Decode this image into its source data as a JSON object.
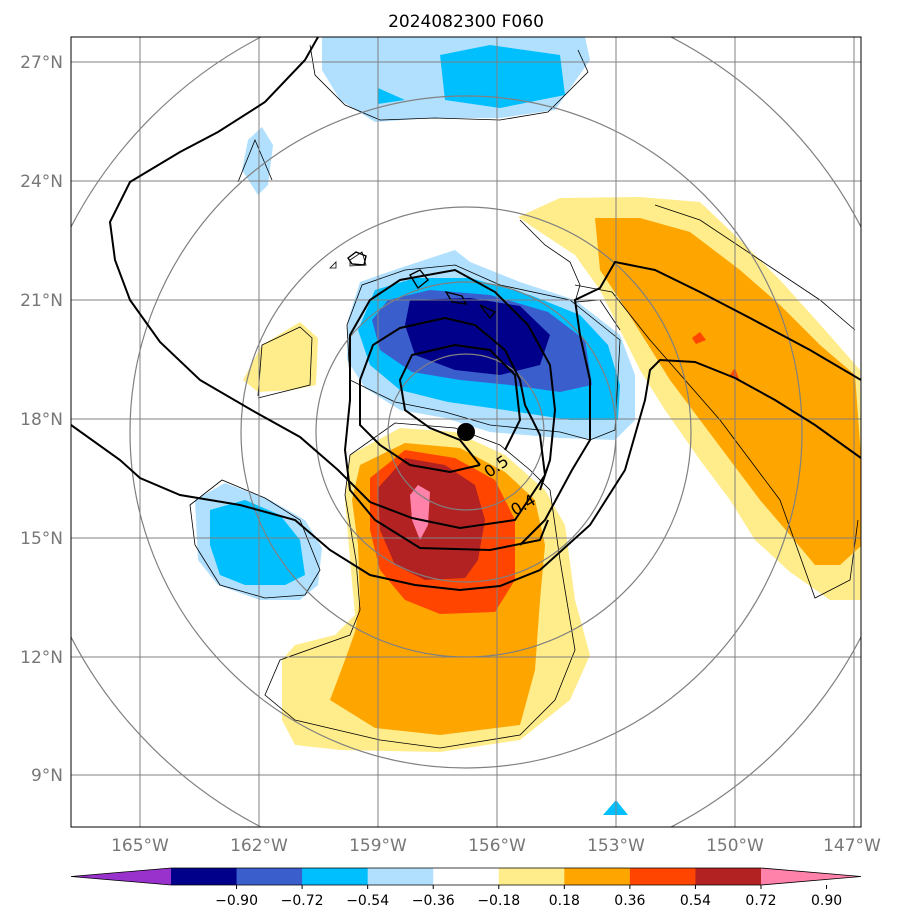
{
  "title": "2024082300 F060",
  "map": {
    "lon_ticks": [
      "165°W",
      "162°W",
      "159°W",
      "156°W",
      "153°W",
      "150°W",
      "147°W"
    ],
    "lat_ticks": [
      "27°N",
      "24°N",
      "21°N",
      "18°N",
      "15°N",
      "12°N",
      "9°N"
    ],
    "center_marker": "storm-center",
    "contour_labels": [
      "0.5",
      "0.4"
    ]
  },
  "colorbar": {
    "ticks": [
      "−0.90",
      "−0.72",
      "−0.54",
      "−0.36",
      "−0.18",
      "0.18",
      "0.36",
      "0.54",
      "0.72",
      "0.90"
    ],
    "colors": [
      "#9932cc",
      "#00008b",
      "#3a5fcd",
      "#00bfff",
      "#b0e0fe",
      "#ffffff",
      "#ffec8b",
      "#ffa500",
      "#ff4500",
      "#b22222",
      "#ff82ab"
    ]
  },
  "colors": {
    "grid": "#808080",
    "range_rings": "#808080",
    "contour": "#000000"
  }
}
